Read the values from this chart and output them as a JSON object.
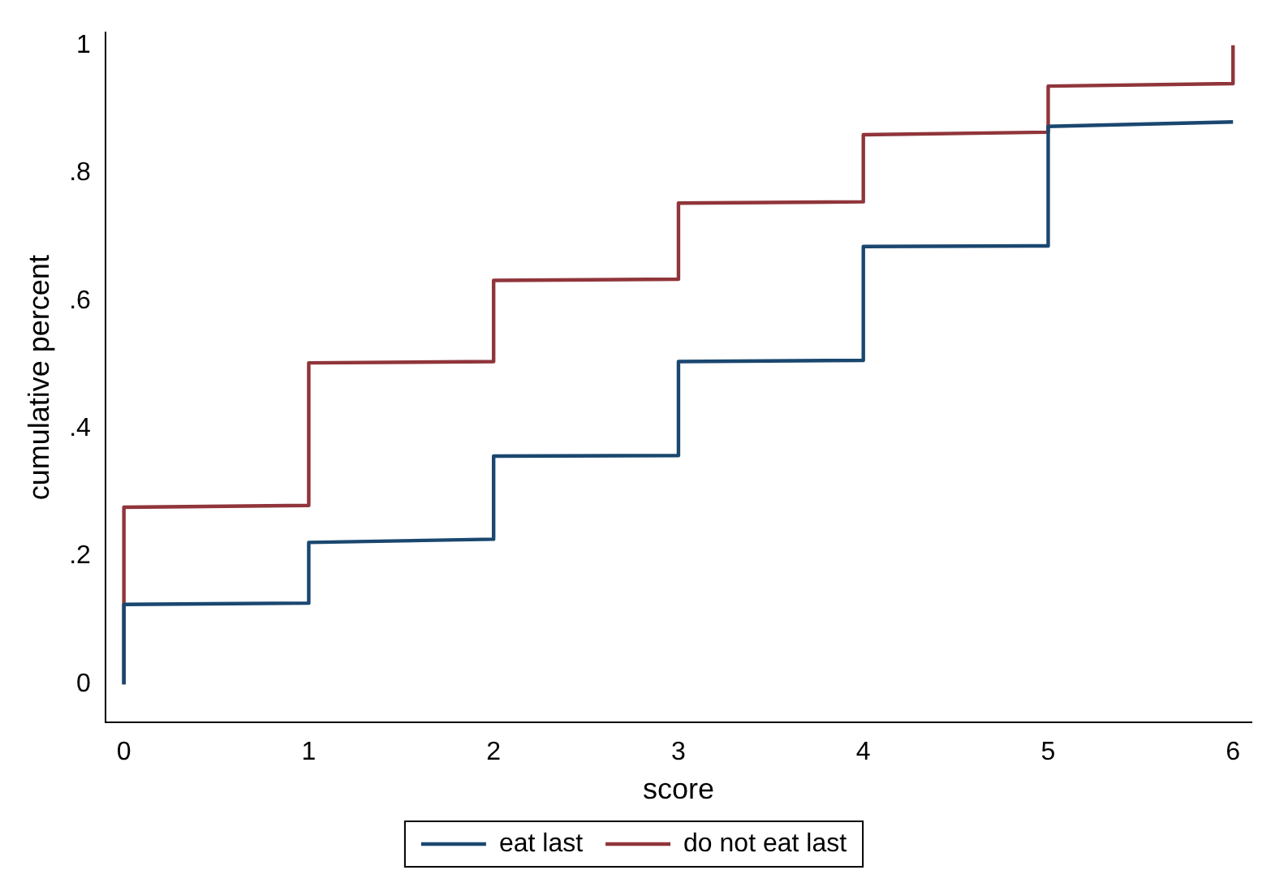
{
  "chart_data": {
    "type": "step",
    "xlabel": "score",
    "ylabel": "cumulative percent",
    "xlim": [
      -0.1,
      6.1
    ],
    "ylim": [
      -0.06,
      1.02
    ],
    "xticks": [
      0,
      1,
      2,
      3,
      4,
      5,
      6
    ],
    "yticks": [
      0,
      {
        "value": 0.2,
        "label": ".2"
      },
      {
        "value": 0.4,
        "label": ".4"
      },
      {
        "value": 0.6,
        "label": ".6"
      },
      {
        "value": 0.8,
        "label": ".8"
      },
      1
    ],
    "grid": false,
    "legend": "bottom",
    "marker": "none",
    "line_style": "solid",
    "series": [
      {
        "name": "eat last",
        "color": "#1a476f",
        "x": [
          0,
          0,
          1,
          1,
          2,
          2,
          3,
          3,
          4,
          4,
          5,
          5,
          6
        ],
        "values": [
          0,
          0.125,
          0.127,
          0.222,
          0.227,
          0.357,
          0.358,
          0.505,
          0.507,
          0.685,
          0.686,
          0.873,
          0.88
        ]
      },
      {
        "name": "do not eat last",
        "color": "#90353b",
        "x": [
          0,
          0,
          1,
          1,
          2,
          2,
          3,
          3,
          4,
          4,
          5,
          5,
          6,
          6
        ],
        "values": [
          0,
          0.277,
          0.28,
          0.503,
          0.505,
          0.632,
          0.634,
          0.753,
          0.755,
          0.86,
          0.864,
          0.936,
          0.94,
          1
        ]
      }
    ]
  }
}
